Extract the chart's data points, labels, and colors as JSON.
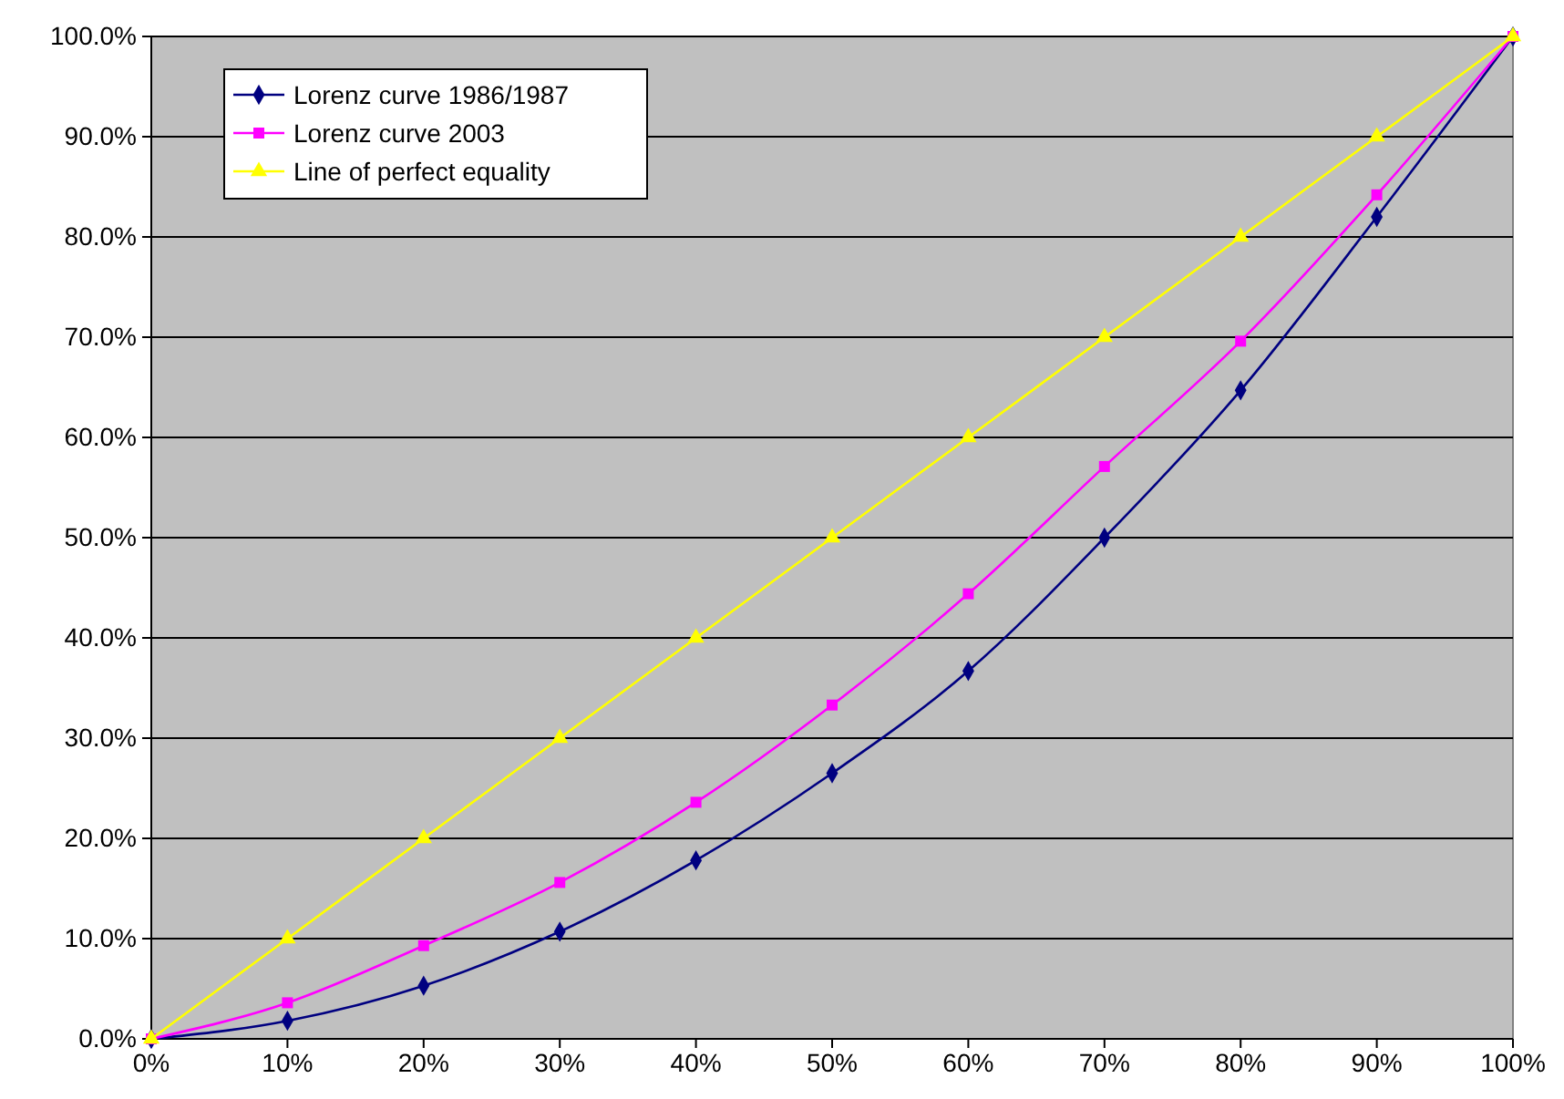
{
  "chart_data": {
    "type": "line",
    "x": [
      0,
      10,
      20,
      30,
      40,
      50,
      60,
      70,
      80,
      90,
      100
    ],
    "series": [
      {
        "name": "Lorenz curve 1986/1987",
        "color": "#000080",
        "marker": "diamond",
        "values": [
          0,
          1.8,
          5.3,
          10.7,
          17.8,
          26.5,
          36.7,
          50.0,
          64.7,
          82.0,
          100
        ]
      },
      {
        "name": "Lorenz curve 2003",
        "color": "#ff00ff",
        "marker": "square",
        "values": [
          0,
          3.6,
          9.3,
          15.6,
          23.6,
          33.3,
          44.4,
          57.1,
          69.6,
          84.2,
          100
        ]
      },
      {
        "name": "Line of perfect equality",
        "color": "#ffff00",
        "marker": "triangle",
        "values": [
          0,
          10,
          20,
          30,
          40,
          50,
          60,
          70,
          80,
          90,
          100
        ]
      }
    ],
    "xlim": [
      0,
      100
    ],
    "ylim": [
      0,
      100
    ],
    "xticks": [
      {
        "value": 0,
        "label": "0%"
      },
      {
        "value": 10,
        "label": "10%"
      },
      {
        "value": 20,
        "label": "20%"
      },
      {
        "value": 30,
        "label": "30%"
      },
      {
        "value": 40,
        "label": "40%"
      },
      {
        "value": 50,
        "label": "50%"
      },
      {
        "value": 60,
        "label": "60%"
      },
      {
        "value": 70,
        "label": "70%"
      },
      {
        "value": 80,
        "label": "80%"
      },
      {
        "value": 90,
        "label": "90%"
      },
      {
        "value": 100,
        "label": "100%"
      }
    ],
    "yticks": [
      {
        "value": 0,
        "label": "0.0%"
      },
      {
        "value": 10,
        "label": "10.0%"
      },
      {
        "value": 20,
        "label": "20.0%"
      },
      {
        "value": 30,
        "label": "30.0%"
      },
      {
        "value": 40,
        "label": "40.0%"
      },
      {
        "value": 50,
        "label": "50.0%"
      },
      {
        "value": 60,
        "label": "60.0%"
      },
      {
        "value": 70,
        "label": "70.0%"
      },
      {
        "value": 80,
        "label": "80.0%"
      },
      {
        "value": 90,
        "label": "90.0%"
      },
      {
        "value": 100,
        "label": "100.0%"
      }
    ],
    "grid": "y",
    "legend": "top left",
    "line_style": "solid"
  }
}
